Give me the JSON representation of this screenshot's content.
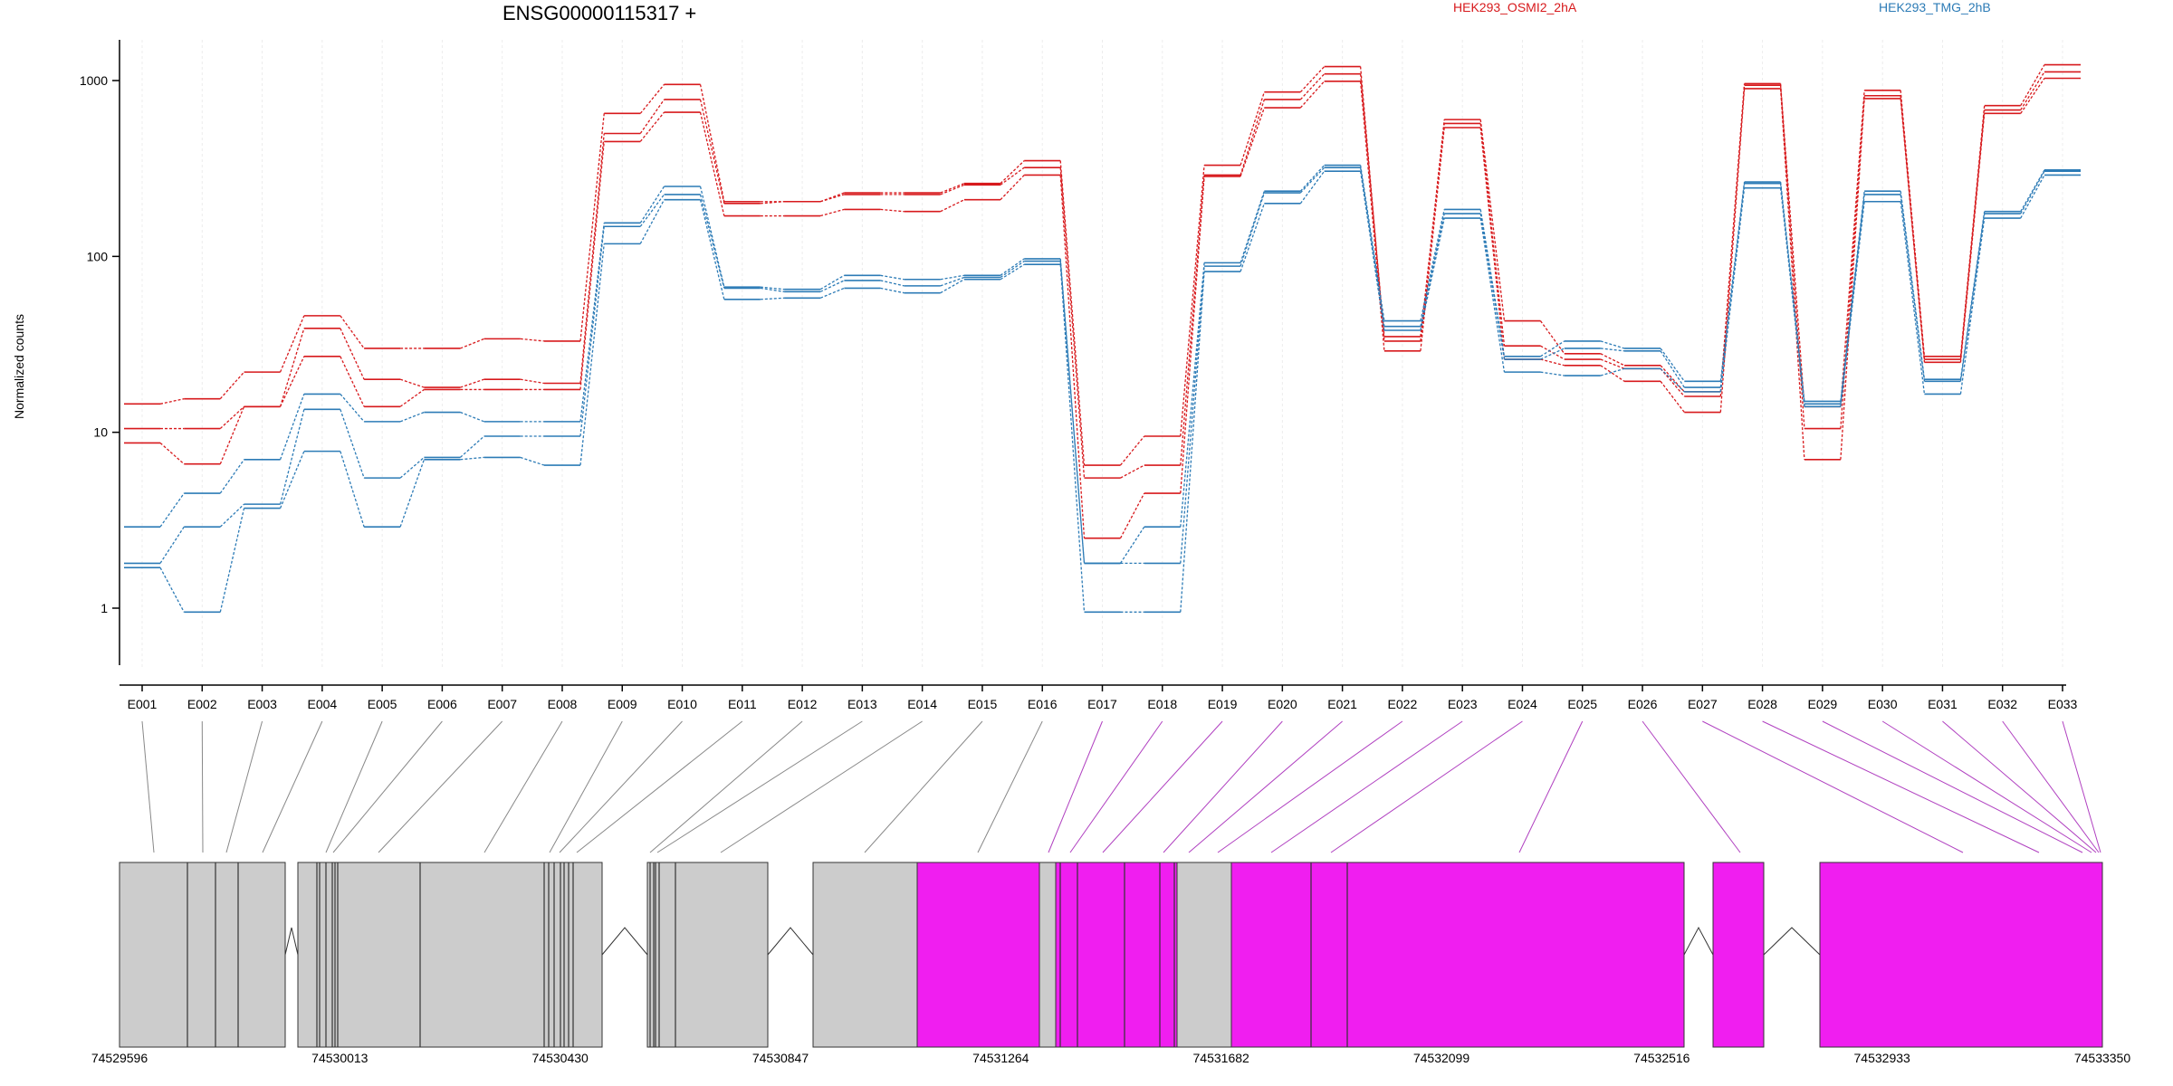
{
  "title": "ENSG00000115317 +",
  "chart_data": {
    "type": "line",
    "title": "ENSG00000115317 +",
    "ylabel": "Normalized counts",
    "yscale": "log",
    "yticks": [
      "1",
      "10",
      "100",
      "1000"
    ],
    "ylim": [
      0.5,
      1700
    ],
    "categories": [
      "E001",
      "E002",
      "E003",
      "E004",
      "E005",
      "E006",
      "E007",
      "E008",
      "E009",
      "E010",
      "E011",
      "E012",
      "E013",
      "E014",
      "E015",
      "E016",
      "E017",
      "E018",
      "E019",
      "E020",
      "E021",
      "E022",
      "E023",
      "E024",
      "E025",
      "E026",
      "E027",
      "E028",
      "E029",
      "E030",
      "E031",
      "E032",
      "E033"
    ],
    "legend": [
      {
        "label": "HEK293_OSMI2_2hA",
        "color": "#d7191c"
      },
      {
        "label": "HEK293_TMG_2hB",
        "color": "#2c7bb6"
      }
    ],
    "series": [
      {
        "group": "HEK293_OSMI2_2hA",
        "color": "#d7191c",
        "values": [
          14.5,
          15.5,
          22,
          46,
          30,
          30,
          34,
          33,
          650,
          950,
          205,
          205,
          230,
          230,
          260,
          350,
          6.5,
          9.5,
          330,
          860,
          1200,
          33,
          600,
          43,
          28,
          24,
          17,
          960,
          14,
          880,
          27,
          720,
          1230
        ]
      },
      {
        "group": "HEK293_OSMI2_2hA",
        "color": "#d7191c",
        "values": [
          10.5,
          10.5,
          14,
          39,
          20,
          18,
          20,
          19,
          500,
          780,
          200,
          205,
          225,
          225,
          255,
          320,
          5.5,
          6.5,
          290,
          780,
          1090,
          35,
          570,
          31,
          26,
          23,
          16,
          940,
          10.5,
          820,
          26,
          680,
          1120
        ]
      },
      {
        "group": "HEK293_OSMI2_2hA",
        "color": "#d7191c",
        "values": [
          8.7,
          6.6,
          14,
          27,
          14,
          17.5,
          17.5,
          17.5,
          450,
          660,
          170,
          170,
          185,
          180,
          210,
          290,
          2.5,
          4.5,
          285,
          700,
          990,
          29,
          540,
          26,
          24,
          19.5,
          13,
          900,
          7,
          790,
          25,
          650,
          1030
        ]
      },
      {
        "group": "HEK293_TMG_2hB",
        "color": "#2c7bb6",
        "values": [
          2.9,
          4.5,
          7,
          16.5,
          11.5,
          13,
          11.5,
          11.5,
          155,
          250,
          67,
          65,
          78,
          74,
          78,
          97,
          1.8,
          2.9,
          92,
          235,
          330,
          43,
          185,
          27,
          33,
          30,
          19.5,
          265,
          15,
          235,
          20,
          180,
          310
        ]
      },
      {
        "group": "HEK293_TMG_2hB",
        "color": "#2c7bb6",
        "values": [
          1.8,
          2.9,
          3.9,
          13.5,
          5.5,
          7.2,
          9.5,
          9.5,
          148,
          225,
          66,
          63,
          73,
          68,
          76,
          94,
          1.8,
          1.8,
          88,
          230,
          320,
          40,
          175,
          26,
          30,
          29,
          18,
          260,
          14.5,
          225,
          19.5,
          175,
          305
        ]
      },
      {
        "group": "HEK293_TMG_2hB",
        "color": "#2c7bb6",
        "values": [
          1.7,
          0.95,
          3.7,
          7.8,
          2.9,
          7,
          7.2,
          6.5,
          118,
          210,
          57,
          58,
          66,
          62,
          74,
          90,
          0.95,
          0.95,
          82,
          200,
          305,
          38,
          165,
          22,
          21,
          23,
          17,
          245,
          14,
          205,
          16.5,
          165,
          290
        ]
      }
    ],
    "gene_model": {
      "coordinate_labels": [
        "74529596",
        "74530013",
        "74530430",
        "74530847",
        "74531264",
        "74531682",
        "74532099",
        "74532516",
        "74532933",
        "74533350"
      ],
      "colors": {
        "exon": "#cccccc",
        "tested_exon": "#f01ef0",
        "connector_exon": "#888888",
        "connector_tested": "#b040c0"
      }
    },
    "grid": "vertical"
  }
}
